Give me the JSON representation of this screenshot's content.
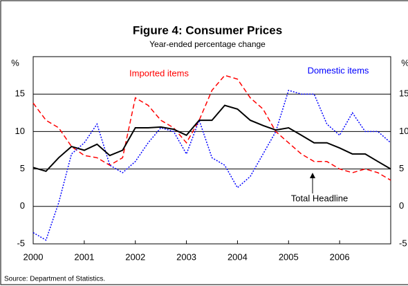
{
  "chart_data": {
    "type": "line",
    "title": "Figure 4: Consumer Prices",
    "subtitle": "Year-ended percentage change",
    "y_axis_label": "%",
    "source": "Source: Department of Statistics.",
    "annotations": [
      "Imported items",
      "Domestic items",
      "Total Headline"
    ],
    "x": [
      2000,
      2000.25,
      2000.5,
      2000.75,
      2001,
      2001.25,
      2001.5,
      2001.75,
      2002,
      2002.25,
      2002.5,
      2002.75,
      2003,
      2003.25,
      2003.5,
      2003.75,
      2004,
      2004.25,
      2004.5,
      2004.75,
      2005,
      2005.25,
      2005.5,
      2005.75,
      2006,
      2006.25,
      2006.5,
      2006.75,
      2007
    ],
    "series": [
      {
        "name": "Imported items",
        "color": "#ff0000",
        "dash": "7,4",
        "values": [
          13.8,
          11.5,
          10.5,
          8,
          6.8,
          6.5,
          5.5,
          6.5,
          14.5,
          13.5,
          11.5,
          10.5,
          8.5,
          11.5,
          15.5,
          17.5,
          17,
          14.5,
          13,
          10,
          8.5,
          7,
          6,
          6,
          5,
          4.5,
          5,
          4.5,
          3.5
        ]
      },
      {
        "name": "Domestic items",
        "color": "#0000ff",
        "dash": "2,2",
        "values": [
          -3.5,
          -4.5,
          0.5,
          7,
          8.5,
          11,
          5.5,
          4.5,
          6,
          8.5,
          10.5,
          10,
          7,
          11.5,
          6.5,
          5.5,
          2.5,
          4,
          7,
          10,
          15.5,
          15,
          15,
          11,
          9.5,
          12.5,
          10,
          10,
          8.5
        ]
      },
      {
        "name": "Total Headline",
        "color": "#000000",
        "dash": "",
        "values": [
          5.2,
          4.7,
          6.5,
          8,
          7.5,
          8.3,
          6.8,
          7.5,
          10.5,
          10.5,
          10.6,
          10.3,
          9.5,
          11.5,
          11.5,
          13.5,
          13,
          11.5,
          10.8,
          10.2,
          10.5,
          9.5,
          8.5,
          8.5,
          7.8,
          7,
          7,
          6,
          5
        ]
      }
    ],
    "xlim": [
      2000,
      2007
    ],
    "xticks": [
      2000,
      2001,
      2002,
      2003,
      2004,
      2005,
      2006
    ],
    "ylim": [
      -5,
      20
    ],
    "yticks": [
      -5,
      0,
      5,
      10,
      15
    ],
    "grid": true
  }
}
